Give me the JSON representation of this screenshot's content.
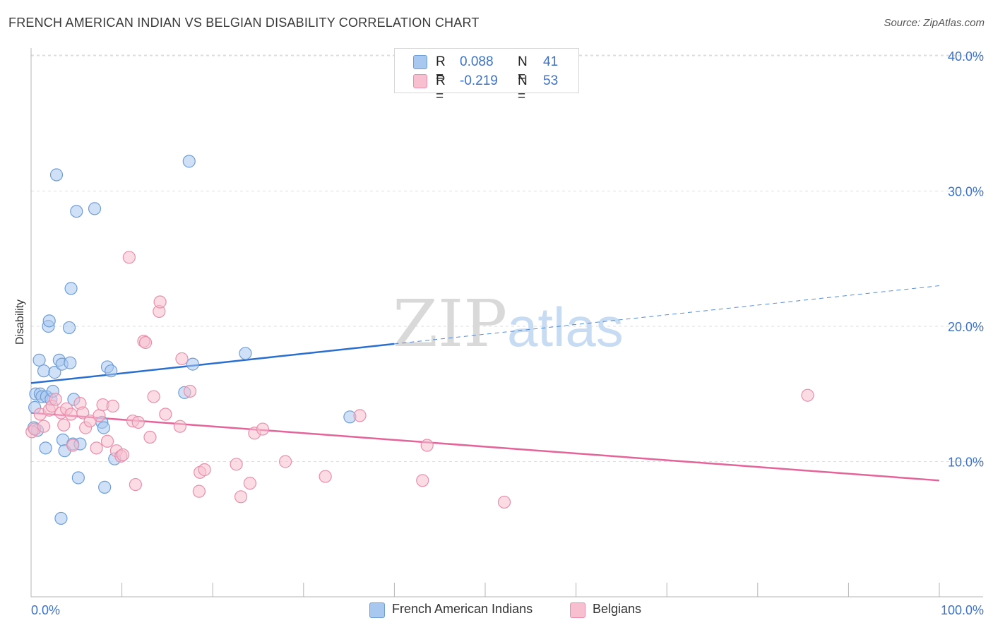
{
  "title": "FRENCH AMERICAN INDIAN VS BELGIAN DISABILITY CORRELATION CHART",
  "source": "Source: ZipAtlas.com",
  "watermark": {
    "zip": "ZIP",
    "atlas": "atlas"
  },
  "legend": {
    "r_label": "R =",
    "n_label": "N =",
    "series": [
      {
        "name": "French American Indians",
        "r": "0.088",
        "n": "41"
      },
      {
        "name": "Belgians",
        "r": "-0.219",
        "n": "53"
      }
    ]
  },
  "colors": {
    "blue_fill": "#a9c8f0",
    "blue_stroke": "#6e9ed8",
    "blue_line": "#2a6fd0",
    "pink_fill": "#f7bfd0",
    "pink_stroke": "#e88fac",
    "pink_line": "#e4649a",
    "grid": "#dddddd",
    "tick_text": "#3d72c8"
  },
  "chart_data": {
    "type": "scatter",
    "title": "FRENCH AMERICAN INDIAN VS BELGIAN DISABILITY CORRELATION CHART",
    "xlabel": "",
    "ylabel": "Disability",
    "xlim": [
      0,
      100
    ],
    "ylim": [
      0,
      42
    ],
    "x_tick_labels": [
      "0.0%",
      "100.0%"
    ],
    "y_ticks": [
      10,
      20,
      30,
      40
    ],
    "y_tick_labels": [
      "10.0%",
      "20.0%",
      "30.0%",
      "40.0%"
    ],
    "grid": true,
    "series": [
      {
        "name": "French American Indians",
        "color": "#a9c8f0",
        "points": [
          [
            0.3,
            12.5
          ],
          [
            0.4,
            14.0
          ],
          [
            0.5,
            15.0
          ],
          [
            0.7,
            12.3
          ],
          [
            0.9,
            17.5
          ],
          [
            1.0,
            15.0
          ],
          [
            1.2,
            14.8
          ],
          [
            1.4,
            16.7
          ],
          [
            1.6,
            11.0
          ],
          [
            1.7,
            14.8
          ],
          [
            1.9,
            20.0
          ],
          [
            2.0,
            20.4
          ],
          [
            2.2,
            14.6
          ],
          [
            2.4,
            15.2
          ],
          [
            2.6,
            16.6
          ],
          [
            2.8,
            31.2
          ],
          [
            3.1,
            17.5
          ],
          [
            3.3,
            5.8
          ],
          [
            3.4,
            17.2
          ],
          [
            3.5,
            11.6
          ],
          [
            3.7,
            10.8
          ],
          [
            4.2,
            19.9
          ],
          [
            4.3,
            17.3
          ],
          [
            4.4,
            22.8
          ],
          [
            4.6,
            11.3
          ],
          [
            4.7,
            14.6
          ],
          [
            5.0,
            28.5
          ],
          [
            5.2,
            8.8
          ],
          [
            5.4,
            11.3
          ],
          [
            7.0,
            28.7
          ],
          [
            7.8,
            12.9
          ],
          [
            8.0,
            12.5
          ],
          [
            8.1,
            8.1
          ],
          [
            8.4,
            17.0
          ],
          [
            8.8,
            16.7
          ],
          [
            9.2,
            10.2
          ],
          [
            16.9,
            15.1
          ],
          [
            17.4,
            32.2
          ],
          [
            17.8,
            17.2
          ],
          [
            23.6,
            18.0
          ],
          [
            35.1,
            13.3
          ]
        ]
      },
      {
        "name": "Belgians",
        "color": "#f7bfd0",
        "points": [
          [
            0.1,
            12.2
          ],
          [
            0.4,
            12.4
          ],
          [
            1.0,
            13.5
          ],
          [
            1.4,
            12.6
          ],
          [
            2.0,
            13.8
          ],
          [
            2.3,
            14.1
          ],
          [
            2.7,
            14.6
          ],
          [
            3.3,
            13.6
          ],
          [
            3.6,
            12.7
          ],
          [
            3.9,
            13.9
          ],
          [
            4.4,
            13.5
          ],
          [
            4.6,
            11.2
          ],
          [
            5.4,
            14.3
          ],
          [
            5.7,
            13.6
          ],
          [
            6.0,
            12.5
          ],
          [
            6.5,
            13.0
          ],
          [
            7.2,
            11.0
          ],
          [
            7.5,
            13.4
          ],
          [
            7.9,
            14.2
          ],
          [
            8.4,
            11.5
          ],
          [
            9.0,
            14.1
          ],
          [
            9.4,
            10.8
          ],
          [
            9.9,
            10.4
          ],
          [
            10.1,
            10.5
          ],
          [
            10.8,
            25.1
          ],
          [
            11.2,
            13.0
          ],
          [
            11.5,
            8.3
          ],
          [
            11.8,
            12.9
          ],
          [
            12.4,
            18.9
          ],
          [
            12.6,
            18.8
          ],
          [
            13.1,
            11.8
          ],
          [
            13.5,
            14.8
          ],
          [
            14.1,
            21.1
          ],
          [
            14.2,
            21.8
          ],
          [
            14.8,
            13.5
          ],
          [
            16.4,
            12.6
          ],
          [
            16.6,
            17.6
          ],
          [
            17.5,
            15.2
          ],
          [
            18.5,
            7.8
          ],
          [
            18.6,
            9.2
          ],
          [
            19.1,
            9.4
          ],
          [
            22.6,
            9.8
          ],
          [
            23.1,
            7.4
          ],
          [
            24.1,
            8.4
          ],
          [
            24.6,
            12.1
          ],
          [
            25.5,
            12.4
          ],
          [
            28.0,
            10.0
          ],
          [
            32.4,
            8.9
          ],
          [
            36.2,
            13.4
          ],
          [
            43.1,
            8.6
          ],
          [
            43.6,
            11.2
          ],
          [
            52.1,
            7.0
          ],
          [
            85.5,
            14.9
          ]
        ]
      }
    ],
    "trend_lines": [
      {
        "series": "French American Indians",
        "x0": 0,
        "y0": 15.8,
        "x1": 40,
        "y1": 18.7,
        "dashed_to_x": 100,
        "dashed_to_y": 23.0
      },
      {
        "series": "Belgians",
        "x0": 0,
        "y0": 13.6,
        "x1": 100,
        "y1": 8.6
      }
    ]
  }
}
